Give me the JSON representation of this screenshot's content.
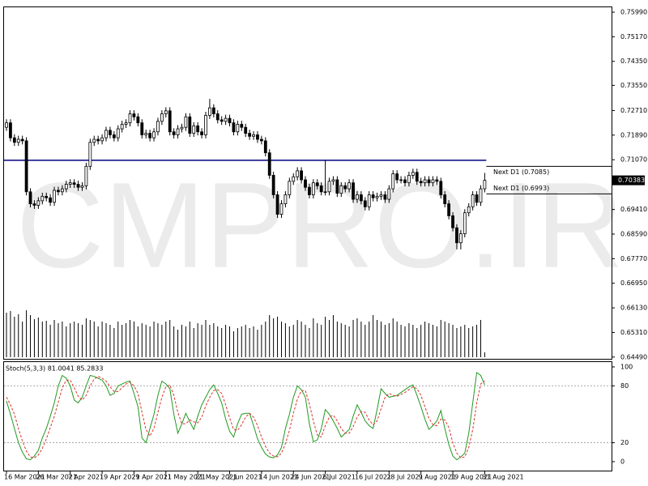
{
  "chart_data": {
    "type": "candlestick",
    "watermark": "CMPRO.IR",
    "open": [
      0.7215,
      0.723,
      0.718,
      0.7165,
      0.7175,
      0.717,
      0.7,
      0.696,
      0.6955,
      0.697,
      0.6985,
      0.698,
      0.6965,
      0.7005,
      0.7,
      0.701,
      0.7025,
      0.703,
      0.7025,
      0.7015,
      0.702,
      0.7085,
      0.7165,
      0.7175,
      0.717,
      0.718,
      0.7205,
      0.719,
      0.718,
      0.721,
      0.7225,
      0.723,
      0.726,
      0.725,
      0.723,
      0.719,
      0.7195,
      0.718,
      0.72,
      0.7235,
      0.726,
      0.727,
      0.72,
      0.719,
      0.721,
      0.7215,
      0.725,
      0.7195,
      0.722,
      0.72,
      0.719,
      0.7255,
      0.728,
      0.726,
      0.724,
      0.7235,
      0.7245,
      0.723,
      0.72,
      0.7225,
      0.7215,
      0.7195,
      0.7185,
      0.719,
      0.7175,
      0.717,
      0.713,
      0.7055,
      0.699,
      0.6925,
      0.696,
      0.699,
      0.7035,
      0.705,
      0.707,
      0.704,
      0.7015,
      0.699,
      0.703,
      0.702,
      0.7,
      0.7,
      0.7035,
      0.704,
      0.6995,
      0.702,
      0.701,
      0.703,
      0.6975,
      0.699,
      0.697,
      0.695,
      0.699,
      0.698,
      0.6985,
      0.699,
      0.6975,
      0.701,
      0.706,
      0.704,
      0.704,
      0.703,
      0.7055,
      0.7065,
      0.7035,
      0.703,
      0.704,
      0.703,
      0.704,
      0.7035,
      0.699,
      0.696,
      0.692,
      0.688,
      0.683,
      0.686,
      0.693,
      0.695,
      0.699,
      0.6965,
      0.701
    ],
    "high": [
      0.7242,
      0.7242,
      0.7192,
      0.7187,
      0.7187,
      0.7182,
      0.7012,
      0.6972,
      0.6982,
      0.6997,
      0.6997,
      0.6992,
      0.7017,
      0.7017,
      0.7022,
      0.7037,
      0.7042,
      0.7042,
      0.7037,
      0.7032,
      0.7097,
      0.7177,
      0.7187,
      0.7187,
      0.7192,
      0.7217,
      0.7217,
      0.7202,
      0.7222,
      0.7237,
      0.7242,
      0.7272,
      0.7272,
      0.7262,
      0.7242,
      0.7207,
      0.7207,
      0.7212,
      0.7247,
      0.7272,
      0.7282,
      0.7282,
      0.7212,
      0.7222,
      0.7227,
      0.7262,
      0.7262,
      0.7232,
      0.7232,
      0.7212,
      0.7267,
      0.731,
      0.7292,
      0.7272,
      0.7252,
      0.7257,
      0.7257,
      0.7242,
      0.7237,
      0.7237,
      0.7227,
      0.7207,
      0.7202,
      0.7202,
      0.7187,
      0.7182,
      0.7142,
      0.7067,
      0.7002,
      0.6972,
      0.7002,
      0.7047,
      0.7062,
      0.7082,
      0.7082,
      0.7052,
      0.7027,
      0.7042,
      0.7042,
      0.7032,
      0.7105,
      0.7047,
      0.7052,
      0.7052,
      0.7032,
      0.7032,
      0.7042,
      0.7042,
      0.7002,
      0.7002,
      0.6982,
      0.7002,
      0.7002,
      0.6997,
      0.7002,
      0.7002,
      0.7022,
      0.7072,
      0.7072,
      0.7052,
      0.7052,
      0.7067,
      0.7077,
      0.7077,
      0.7047,
      0.7052,
      0.7052,
      0.7052,
      0.7052,
      0.7047,
      0.7002,
      0.6972,
      0.6932,
      0.6892,
      0.6872,
      0.6942,
      0.6962,
      0.7002,
      0.7002,
      0.7022,
      0.7063
    ],
    "low": [
      0.7203,
      0.7168,
      0.7153,
      0.7153,
      0.7158,
      0.6988,
      0.6948,
      0.6943,
      0.6943,
      0.6958,
      0.6968,
      0.6953,
      0.6953,
      0.6988,
      0.6988,
      0.6998,
      0.7013,
      0.7013,
      0.7003,
      0.7003,
      0.7008,
      0.7073,
      0.7153,
      0.7158,
      0.7158,
      0.7168,
      0.7178,
      0.7168,
      0.7168,
      0.7198,
      0.7213,
      0.7218,
      0.7238,
      0.7218,
      0.7178,
      0.7178,
      0.7168,
      0.7168,
      0.7188,
      0.7223,
      0.7248,
      0.7188,
      0.7178,
      0.7178,
      0.7198,
      0.7203,
      0.7183,
      0.7183,
      0.7188,
      0.7178,
      0.7178,
      0.7243,
      0.7248,
      0.7228,
      0.7223,
      0.7223,
      0.7218,
      0.7188,
      0.7188,
      0.7203,
      0.7183,
      0.7173,
      0.7173,
      0.7163,
      0.7158,
      0.7118,
      0.7043,
      0.6978,
      0.6913,
      0.6913,
      0.6948,
      0.6978,
      0.7023,
      0.7038,
      0.7028,
      0.7003,
      0.6978,
      0.6978,
      0.7008,
      0.6988,
      0.6988,
      0.6988,
      0.7023,
      0.6983,
      0.6983,
      0.6998,
      0.6998,
      0.6963,
      0.6963,
      0.6958,
      0.6938,
      0.6938,
      0.6968,
      0.6968,
      0.6973,
      0.6963,
      0.6963,
      0.6998,
      0.7028,
      0.7028,
      0.7018,
      0.7018,
      0.7043,
      0.7023,
      0.7018,
      0.7018,
      0.7018,
      0.7018,
      0.7023,
      0.6978,
      0.6948,
      0.6908,
      0.6868,
      0.6808,
      0.6808,
      0.6848,
      0.6918,
      0.6938,
      0.6953,
      0.6953,
      0.6998
    ],
    "close": [
      0.723,
      0.718,
      0.7165,
      0.7175,
      0.717,
      0.7,
      0.696,
      0.6955,
      0.697,
      0.6985,
      0.698,
      0.6965,
      0.7005,
      0.7,
      0.701,
      0.7025,
      0.703,
      0.7025,
      0.7015,
      0.702,
      0.7085,
      0.7165,
      0.7175,
      0.717,
      0.718,
      0.7205,
      0.719,
      0.718,
      0.721,
      0.7225,
      0.723,
      0.726,
      0.725,
      0.723,
      0.719,
      0.7195,
      0.718,
      0.72,
      0.7235,
      0.726,
      0.727,
      0.72,
      0.719,
      0.721,
      0.7215,
      0.725,
      0.7195,
      0.722,
      0.72,
      0.719,
      0.7255,
      0.728,
      0.726,
      0.724,
      0.7235,
      0.7245,
      0.723,
      0.72,
      0.7225,
      0.7215,
      0.7195,
      0.7185,
      0.719,
      0.7175,
      0.717,
      0.713,
      0.7055,
      0.699,
      0.6925,
      0.696,
      0.699,
      0.7035,
      0.705,
      0.707,
      0.704,
      0.7015,
      0.699,
      0.703,
      0.702,
      0.7,
      0.7,
      0.7035,
      0.704,
      0.6995,
      0.702,
      0.701,
      0.703,
      0.6975,
      0.699,
      0.697,
      0.695,
      0.699,
      0.698,
      0.6985,
      0.699,
      0.6975,
      0.701,
      0.706,
      0.704,
      0.704,
      0.703,
      0.7055,
      0.7065,
      0.7035,
      0.703,
      0.704,
      0.703,
      0.704,
      0.7035,
      0.699,
      0.696,
      0.692,
      0.688,
      0.683,
      0.686,
      0.693,
      0.695,
      0.699,
      0.6965,
      0.701,
      0.70383
    ],
    "volume": [
      55,
      57,
      50,
      53,
      44,
      58,
      52,
      47,
      49,
      44,
      45,
      40,
      46,
      42,
      44,
      38,
      42,
      44,
      42,
      40,
      48,
      46,
      44,
      38,
      44,
      42,
      40,
      36,
      44,
      40,
      42,
      46,
      44,
      38,
      42,
      40,
      38,
      44,
      42,
      40,
      44,
      46,
      38,
      34,
      40,
      38,
      44,
      36,
      42,
      40,
      46,
      40,
      42,
      38,
      36,
      40,
      38,
      32,
      36,
      38,
      40,
      36,
      38,
      34,
      40,
      44,
      52,
      48,
      50,
      44,
      42,
      38,
      40,
      46,
      44,
      40,
      36,
      48,
      42,
      40,
      50,
      46,
      52,
      44,
      42,
      40,
      38,
      46,
      48,
      44,
      40,
      44,
      52,
      46,
      44,
      40,
      42,
      48,
      44,
      40,
      38,
      42,
      40,
      36,
      40,
      44,
      42,
      40,
      38,
      46,
      44,
      42,
      40,
      36,
      38,
      40,
      36,
      38,
      40,
      46,
      6
    ],
    "ylim": [
      0.6443,
      0.7618
    ],
    "yticks": [
      {
        "value": 0.7599,
        "label": "0.75990"
      },
      {
        "value": 0.7517,
        "label": "0.75170"
      },
      {
        "value": 0.7435,
        "label": "0.74350"
      },
      {
        "value": 0.7355,
        "label": "0.73550"
      },
      {
        "value": 0.7271,
        "label": "0.72710"
      },
      {
        "value": 0.7189,
        "label": "0.71890"
      },
      {
        "value": 0.7107,
        "label": "0.71070"
      },
      {
        "value": 0.6941,
        "label": "0.69410"
      },
      {
        "value": 0.6859,
        "label": "0.68590"
      },
      {
        "value": 0.6777,
        "label": "0.67770"
      },
      {
        "value": 0.6695,
        "label": "0.66950"
      },
      {
        "value": 0.6613,
        "label": "0.66130"
      },
      {
        "value": 0.6531,
        "label": "0.65310"
      },
      {
        "value": 0.6449,
        "label": "0.64490"
      }
    ],
    "last_price": 0.70383,
    "hline": {
      "value": 0.7105,
      "color": "#000080"
    },
    "levels": [
      {
        "value": 0.7085,
        "label": "Next D1 (0.7085)"
      },
      {
        "value": 0.6993,
        "label": "Next D1 (0.6993)"
      }
    ],
    "dates": [
      "16 Mar 2021",
      "26 Mar 2021",
      "7 Apr 2021",
      "19 Apr 2021",
      "29 Apr 2021",
      "11 May 2021",
      "21 May 2021",
      "2 Jun 2021",
      "14 Jun 2021",
      "24 Jun 2021",
      "6 Jul 2021",
      "16 Jul 2021",
      "28 Jul 2021",
      "9 Aug 2021",
      "19 Aug 2021",
      "31 Aug 2021"
    ],
    "stoch": {
      "type": "line",
      "title": "Stoch(5,3,3) 81.0041 85.2833",
      "ylim": [
        -10.3,
        105.1
      ],
      "yticks": [
        0,
        20,
        80,
        100
      ],
      "levels": [
        20,
        80
      ],
      "series": [
        {
          "color": "#1f9a1f",
          "style": "solid",
          "values": [
            64,
            50,
            35,
            20,
            10,
            3,
            2,
            6,
            12,
            25,
            35,
            48,
            62,
            80,
            91,
            88,
            80,
            65,
            62,
            68,
            80,
            91,
            90,
            88,
            86,
            80,
            70,
            72,
            80,
            82,
            84,
            85,
            72,
            58,
            25,
            20,
            35,
            50,
            70,
            85,
            82,
            77,
            50,
            30,
            40,
            51,
            42,
            34,
            48,
            60,
            68,
            76,
            81,
            72,
            62,
            45,
            32,
            26,
            40,
            50,
            51,
            51,
            38,
            24,
            15,
            8,
            5,
            4,
            7,
            15,
            35,
            50,
            68,
            80,
            76,
            68,
            40,
            21,
            23,
            35,
            55,
            50,
            43,
            35,
            26,
            30,
            34,
            48,
            60,
            52,
            43,
            38,
            35,
            55,
            77,
            72,
            68,
            69,
            70,
            73,
            76,
            79,
            81,
            70,
            58,
            45,
            34,
            38,
            43,
            54,
            35,
            18,
            6,
            2,
            5,
            9,
            30,
            62,
            94,
            91,
            81.0041
          ]
        },
        {
          "color": "#e03030",
          "style": "dashed",
          "values": [
            68,
            60,
            50,
            35,
            22,
            11,
            5,
            4,
            7,
            14,
            24,
            36,
            48,
            63,
            78,
            86,
            86,
            78,
            69,
            65,
            70,
            80,
            87,
            90,
            88,
            85,
            79,
            74,
            74,
            78,
            82,
            84,
            80,
            72,
            52,
            34,
            27,
            35,
            52,
            68,
            79,
            81,
            70,
            52,
            40,
            40,
            44,
            42,
            41,
            47,
            59,
            68,
            75,
            76,
            72,
            60,
            46,
            34,
            33,
            39,
            47,
            51,
            47,
            38,
            26,
            16,
            9,
            6,
            5,
            9,
            19,
            33,
            51,
            66,
            75,
            75,
            61,
            43,
            28,
            26,
            38,
            47,
            49,
            43,
            35,
            30,
            30,
            37,
            47,
            53,
            52,
            44,
            39,
            43,
            56,
            68,
            72,
            70,
            69,
            71,
            73,
            76,
            79,
            77,
            70,
            58,
            46,
            39,
            38,
            45,
            44,
            36,
            20,
            9,
            4,
            5,
            15,
            34,
            62,
            82,
            85.2833
          ]
        }
      ]
    }
  }
}
